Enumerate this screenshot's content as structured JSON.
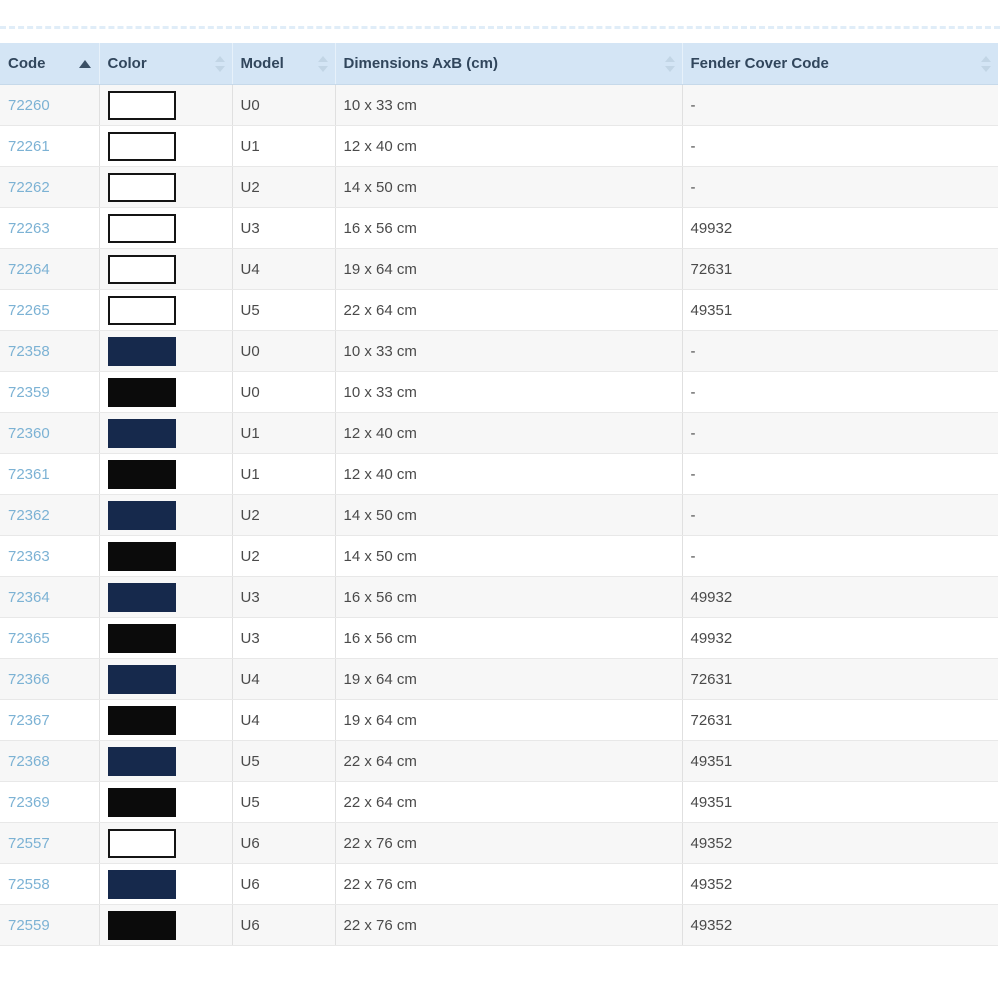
{
  "table": {
    "header": {
      "background_color": "#d4e5f5",
      "text_color": "#31465c",
      "columns": [
        {
          "label": "Code",
          "sortable": true,
          "sorted": "asc"
        },
        {
          "label": "Color",
          "sortable": true,
          "sorted": "none"
        },
        {
          "label": "Model",
          "sortable": true,
          "sorted": "none"
        },
        {
          "label": "Dimensions AxB (cm)",
          "sortable": true,
          "sorted": "none"
        },
        {
          "label": "Fender Cover Code",
          "sortable": true,
          "sorted": "none"
        }
      ]
    },
    "link_color": "#7cb2d4",
    "swatch_colors": {
      "white": "#ffffff",
      "navy": "#16294c",
      "black": "#0b0b0b"
    },
    "rows": [
      {
        "code": "72260",
        "color": "white",
        "model": "U0",
        "dimensions": "10 x 33 cm",
        "fender_cover_code": "-"
      },
      {
        "code": "72261",
        "color": "white",
        "model": "U1",
        "dimensions": "12 x 40 cm",
        "fender_cover_code": "-"
      },
      {
        "code": "72262",
        "color": "white",
        "model": "U2",
        "dimensions": "14 x 50 cm",
        "fender_cover_code": "-"
      },
      {
        "code": "72263",
        "color": "white",
        "model": "U3",
        "dimensions": "16 x 56 cm",
        "fender_cover_code": "49932"
      },
      {
        "code": "72264",
        "color": "white",
        "model": "U4",
        "dimensions": "19 x 64 cm",
        "fender_cover_code": "72631"
      },
      {
        "code": "72265",
        "color": "white",
        "model": "U5",
        "dimensions": "22 x 64 cm",
        "fender_cover_code": "49351"
      },
      {
        "code": "72358",
        "color": "navy",
        "model": "U0",
        "dimensions": "10 x 33 cm",
        "fender_cover_code": "-"
      },
      {
        "code": "72359",
        "color": "black",
        "model": "U0",
        "dimensions": "10 x 33 cm",
        "fender_cover_code": "-"
      },
      {
        "code": "72360",
        "color": "navy",
        "model": "U1",
        "dimensions": "12 x 40 cm",
        "fender_cover_code": "-"
      },
      {
        "code": "72361",
        "color": "black",
        "model": "U1",
        "dimensions": "12 x 40 cm",
        "fender_cover_code": "-"
      },
      {
        "code": "72362",
        "color": "navy",
        "model": "U2",
        "dimensions": "14 x 50 cm",
        "fender_cover_code": "-"
      },
      {
        "code": "72363",
        "color": "black",
        "model": "U2",
        "dimensions": "14 x 50 cm",
        "fender_cover_code": "-"
      },
      {
        "code": "72364",
        "color": "navy",
        "model": "U3",
        "dimensions": "16 x 56 cm",
        "fender_cover_code": "49932"
      },
      {
        "code": "72365",
        "color": "black",
        "model": "U3",
        "dimensions": "16 x 56 cm",
        "fender_cover_code": "49932"
      },
      {
        "code": "72366",
        "color": "navy",
        "model": "U4",
        "dimensions": "19 x 64 cm",
        "fender_cover_code": "72631"
      },
      {
        "code": "72367",
        "color": "black",
        "model": "U4",
        "dimensions": "19 x 64 cm",
        "fender_cover_code": "72631"
      },
      {
        "code": "72368",
        "color": "navy",
        "model": "U5",
        "dimensions": "22 x 64 cm",
        "fender_cover_code": "49351"
      },
      {
        "code": "72369",
        "color": "black",
        "model": "U5",
        "dimensions": "22 x 64 cm",
        "fender_cover_code": "49351"
      },
      {
        "code": "72557",
        "color": "white",
        "model": "U6",
        "dimensions": "22 x 76 cm",
        "fender_cover_code": "49352"
      },
      {
        "code": "72558",
        "color": "navy",
        "model": "U6",
        "dimensions": "22 x 76 cm",
        "fender_cover_code": "49352"
      },
      {
        "code": "72559",
        "color": "black",
        "model": "U6",
        "dimensions": "22 x 76 cm",
        "fender_cover_code": "49352"
      }
    ]
  }
}
